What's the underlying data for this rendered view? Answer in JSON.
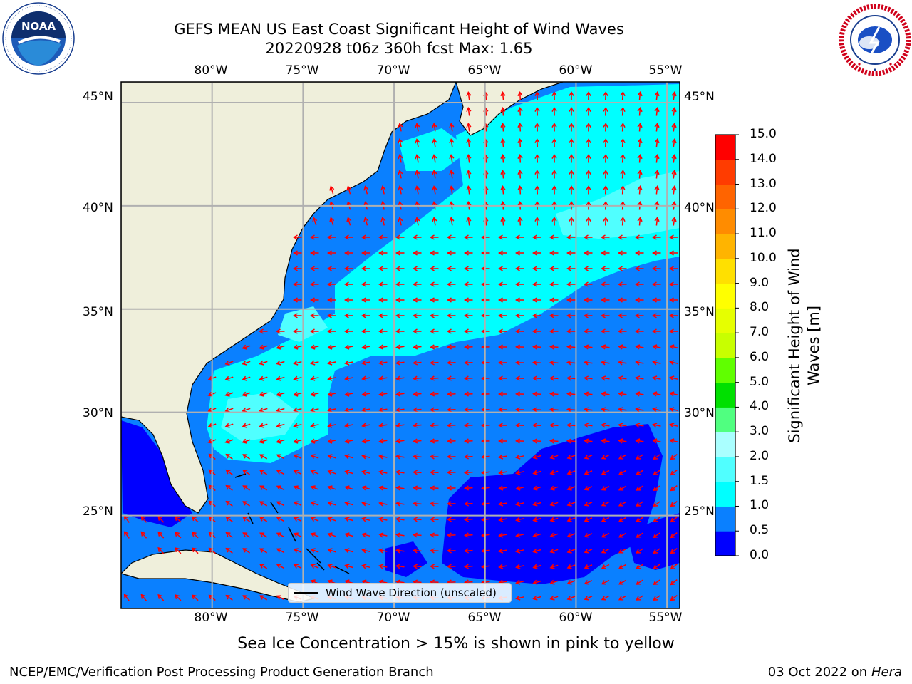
{
  "header": {
    "title_line1": "GEFS MEAN US East Coast Significant Height of Wind Waves",
    "title_line2": "20220928 t06z 360h fcst   Max: 1.65"
  },
  "logos": {
    "left": {
      "name": "noaa-logo",
      "text": "NOAA",
      "ring_text": "NATIONAL OCEANIC AND ATMOSPHERIC ADMINISTRATION · U.S. DEPARTMENT OF COMMERCE"
    },
    "right": {
      "name": "national-weather-service-logo",
      "ring_text": "NATIONAL WEATHER SERVICE"
    }
  },
  "map": {
    "projection": "plate-carree",
    "lon_ticks": [
      "80°W",
      "75°W",
      "70°W",
      "65°W",
      "60°W",
      "55°W"
    ],
    "lat_ticks": [
      "45°N",
      "40°N",
      "35°N",
      "30°N",
      "25°N"
    ],
    "lon_range": [
      -85,
      -54.3
    ],
    "lat_range": [
      20.5,
      46
    ],
    "grid": true,
    "field_colors": {
      "0.0-0.5": "#0000ff",
      "0.5-1.0": "#0a80ff",
      "1.0-1.5": "#00ffff",
      "1.5-2.0": "#50ffff",
      "land": "#efefdb"
    },
    "arrow_color": "#ff0000"
  },
  "legend": {
    "label": "Wind Wave Direction (unscaled)",
    "location": "bottom-center"
  },
  "colorbar": {
    "label": "Significant Height of Wind Waves [m]",
    "label_line1": "Significant Height of Wind",
    "label_line2": "Waves [m]",
    "ticks": [
      "15.0",
      "14.0",
      "13.0",
      "12.0",
      "11.0",
      "10.0",
      "9.0",
      "8.0",
      "7.0",
      "6.0",
      "5.0",
      "4.0",
      "3.0",
      "2.0",
      "1.5",
      "1.0",
      "0.5",
      "0.0"
    ],
    "colors_bottom_to_top": [
      "#0000ff",
      "#0a80ff",
      "#00ffff",
      "#50ffff",
      "#aaffff",
      "#50ff80",
      "#00e000",
      "#60ff00",
      "#c8ff00",
      "#e6ff00",
      "#ffff00",
      "#ffe000",
      "#ffb400",
      "#ff8c00",
      "#ff6400",
      "#ff3c00",
      "#ff0000"
    ]
  },
  "note": "Sea Ice Concentration > 15% is shown in pink to yellow",
  "footer": {
    "left": "NCEP/EMC/Verification Post Processing Product Generation Branch",
    "right_date": "03 Oct 2022 on ",
    "right_host": "Hera"
  }
}
